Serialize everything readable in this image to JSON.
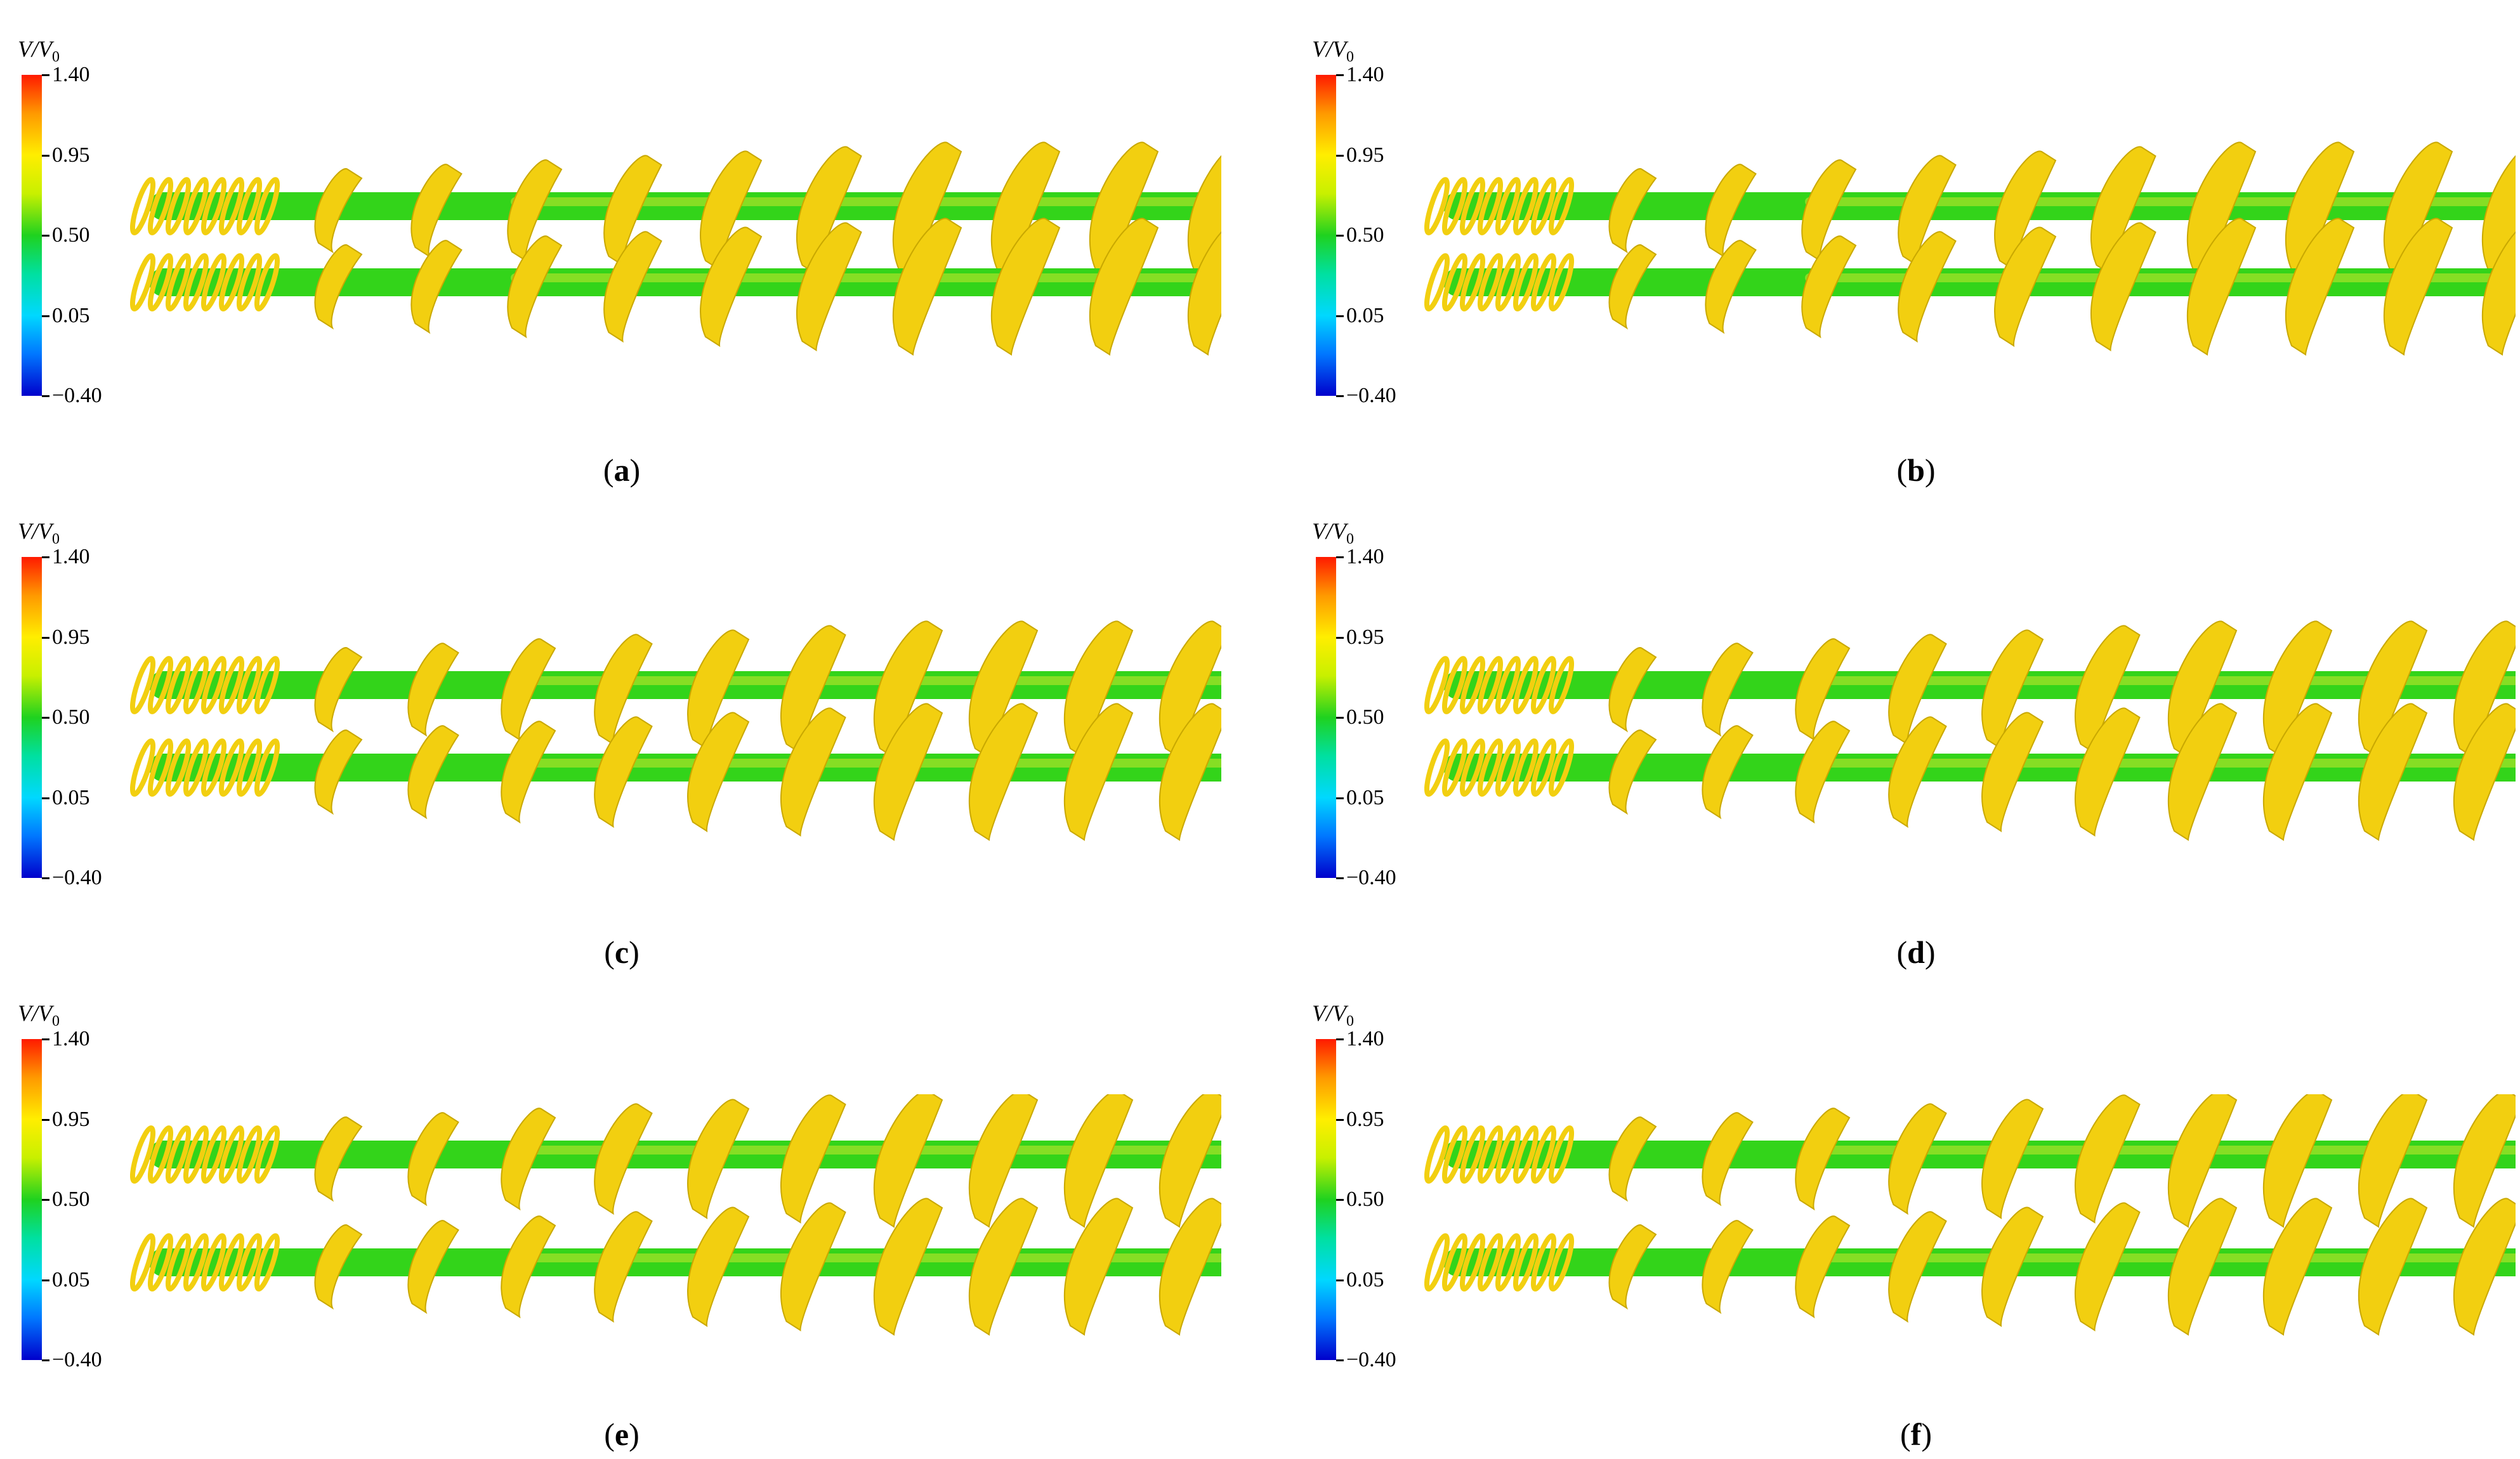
{
  "colorbar": {
    "title_main": "V/V",
    "title_sub": "0",
    "ticks": [
      "1.40",
      "0.95",
      "0.50",
      "0.05",
      "−0.40"
    ],
    "colors": [
      "#ff1a00",
      "#ffee00",
      "#1fd21f",
      "#00d8ff",
      "#0000cc"
    ]
  },
  "panels": [
    {
      "label": "a"
    },
    {
      "label": "b"
    },
    {
      "label": "c"
    },
    {
      "label": "d"
    },
    {
      "label": "e"
    },
    {
      "label": "f"
    }
  ],
  "vortex_colors": {
    "helix": "#f2cf10",
    "core": "#33d41a",
    "core_light": "#a9e22a"
  }
}
